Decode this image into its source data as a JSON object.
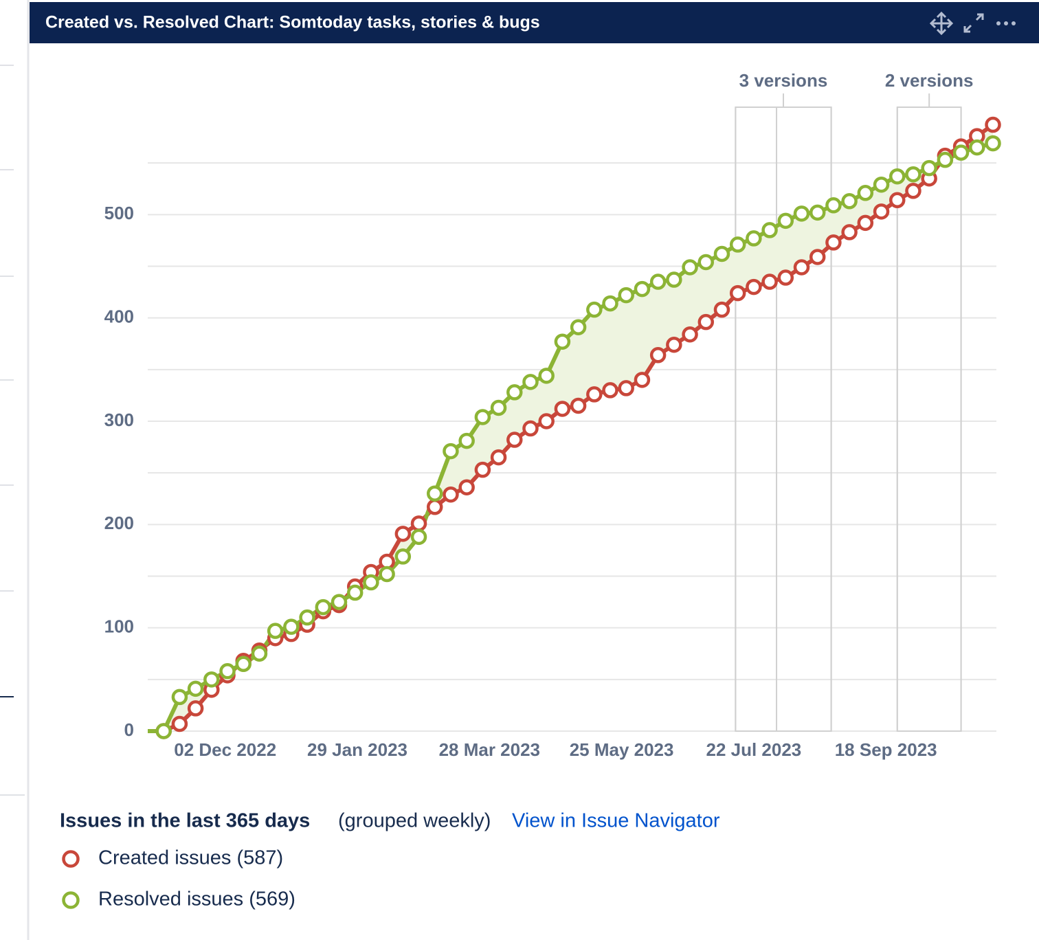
{
  "chart_data": {
    "type": "line",
    "title": "Created vs. Resolved Chart: Somtoday tasks, stories & bugs",
    "x": [
      "2022-10-29",
      "2022-11-05",
      "2022-11-12",
      "2022-11-19",
      "2022-11-26",
      "2022-12-03",
      "2022-12-10",
      "2022-12-17",
      "2022-12-24",
      "2022-12-31",
      "2023-01-07",
      "2023-01-14",
      "2023-01-21",
      "2023-01-28",
      "2023-02-04",
      "2023-02-11",
      "2023-02-18",
      "2023-02-25",
      "2023-03-04",
      "2023-03-11",
      "2023-03-18",
      "2023-03-25",
      "2023-04-01",
      "2023-04-08",
      "2023-04-15",
      "2023-04-22",
      "2023-04-29",
      "2023-05-06",
      "2023-05-13",
      "2023-05-20",
      "2023-05-27",
      "2023-06-03",
      "2023-06-10",
      "2023-06-17",
      "2023-06-24",
      "2023-07-01",
      "2023-07-08",
      "2023-07-15",
      "2023-07-22",
      "2023-07-29",
      "2023-08-05",
      "2023-08-12",
      "2023-08-19",
      "2023-08-26",
      "2023-09-02",
      "2023-09-09",
      "2023-09-16",
      "2023-09-23",
      "2023-09-30",
      "2023-10-07",
      "2023-10-14",
      "2023-10-21",
      "2023-10-28",
      "2023-11-04"
    ],
    "series": [
      {
        "name": "Created issues (587)",
        "color": "#c8473a",
        "values": [
          0,
          0,
          7,
          22,
          40,
          54,
          68,
          78,
          90,
          94,
          103,
          116,
          122,
          140,
          154,
          164,
          191,
          201,
          217,
          229,
          236,
          253,
          265,
          282,
          293,
          300,
          312,
          315,
          326,
          330,
          332,
          340,
          364,
          374,
          384,
          396,
          408,
          424,
          430,
          435,
          439,
          449,
          459,
          473,
          483,
          492,
          503,
          514,
          523,
          535,
          557,
          566,
          576,
          587
        ]
      },
      {
        "name": "Resolved issues (569)",
        "color": "#8cb435",
        "values": [
          0,
          0,
          33,
          41,
          50,
          58,
          65,
          75,
          97,
          101,
          110,
          120,
          125,
          134,
          144,
          152,
          169,
          188,
          230,
          271,
          281,
          304,
          313,
          328,
          338,
          344,
          377,
          391,
          408,
          414,
          422,
          428,
          435,
          437,
          449,
          454,
          462,
          471,
          477,
          485,
          494,
          501,
          502,
          509,
          513,
          521,
          529,
          537,
          539,
          545,
          553,
          560,
          565,
          569
        ]
      }
    ],
    "xlim": [
      "2022-10-29",
      "2023-11-04"
    ],
    "xticks": [
      {
        "value": "2022-12-02",
        "label": "02 Dec 2022"
      },
      {
        "value": "2023-01-29",
        "label": "29 Jan 2023"
      },
      {
        "value": "2023-03-28",
        "label": "28 Mar 2023"
      },
      {
        "value": "2023-05-25",
        "label": "25 May 2023"
      },
      {
        "value": "2023-07-22",
        "label": "22 Jul 2023"
      },
      {
        "value": "2023-09-18",
        "label": "18 Sep 2023"
      }
    ],
    "ylim": [
      0,
      600
    ],
    "yticks": [
      0,
      100,
      200,
      300,
      400,
      500
    ],
    "minor_yticks": [
      50,
      150,
      250,
      350,
      450,
      550
    ],
    "grid": true,
    "fill_between": "#eef4e0",
    "version_markers": [
      {
        "label": "3 versions",
        "dates": [
          "2023-07-14",
          "2023-08-01",
          "2023-08-25"
        ]
      },
      {
        "label": "2 versions",
        "dates": [
          "2023-09-23",
          "2023-10-21"
        ]
      }
    ],
    "footer": {
      "heading": "Issues in the last 365 days",
      "note": "(grouped weekly)",
      "link": "View in Issue Navigator"
    }
  }
}
